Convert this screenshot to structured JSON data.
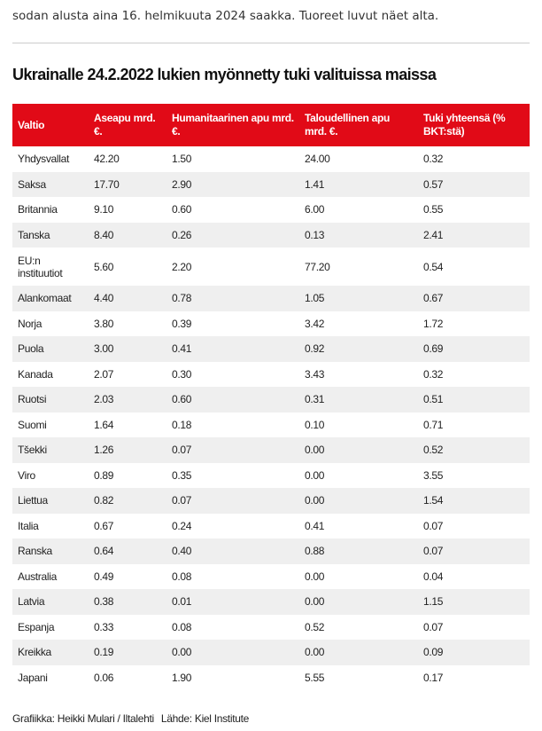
{
  "intro": "sodan alusta aina 16. helmikuuta 2024 saakka. Tuoreet luvut näet alta.",
  "title": "Ukrainalle 24.2.2022 lukien myönnetty tuki valituissa maissa",
  "table": {
    "header": [
      "Valtio",
      "Aseapu mrd. €.",
      "Humanitaarinen apu mrd. €.",
      "Taloudellinen apu mrd. €.",
      "Tuki yhteensä (% BKT:stä)"
    ],
    "rows": [
      [
        "Yhdysvallat",
        "42.20",
        "1.50",
        "24.00",
        "0.32"
      ],
      [
        "Saksa",
        "17.70",
        "2.90",
        "1.41",
        "0.57"
      ],
      [
        "Britannia",
        "9.10",
        "0.60",
        "6.00",
        "0.55"
      ],
      [
        "Tanska",
        "8.40",
        "0.26",
        "0.13",
        "2.41"
      ],
      [
        "EU:n instituutiot",
        "5.60",
        "2.20",
        "77.20",
        "0.54"
      ],
      [
        "Alankomaat",
        "4.40",
        "0.78",
        "1.05",
        "0.67"
      ],
      [
        "Norja",
        "3.80",
        "0.39",
        "3.42",
        "1.72"
      ],
      [
        "Puola",
        "3.00",
        "0.41",
        "0.92",
        "0.69"
      ],
      [
        "Kanada",
        "2.07",
        "0.30",
        "3.43",
        "0.32"
      ],
      [
        "Ruotsi",
        "2.03",
        "0.60",
        "0.31",
        "0.51"
      ],
      [
        "Suomi",
        "1.64",
        "0.18",
        "0.10",
        "0.71"
      ],
      [
        "Tšekki",
        "1.26",
        "0.07",
        "0.00",
        "0.52"
      ],
      [
        "Viro",
        "0.89",
        "0.35",
        "0.00",
        "3.55"
      ],
      [
        "Liettua",
        "0.82",
        "0.07",
        "0.00",
        "1.54"
      ],
      [
        "Italia",
        "0.67",
        "0.24",
        "0.41",
        "0.07"
      ],
      [
        "Ranska",
        "0.64",
        "0.40",
        "0.88",
        "0.07"
      ],
      [
        "Australia",
        "0.49",
        "0.08",
        "0.00",
        "0.04"
      ],
      [
        "Latvia",
        "0.38",
        "0.01",
        "0.00",
        "1.15"
      ],
      [
        "Espanja",
        "0.33",
        "0.08",
        "0.52",
        "0.07"
      ],
      [
        "Kreikka",
        "0.19",
        "0.00",
        "0.00",
        "0.09"
      ],
      [
        "Japani",
        "0.06",
        "1.90",
        "5.55",
        "0.17"
      ]
    ]
  },
  "footer": {
    "credit": "Grafiikka: Heikki Mulari / Iltalehti",
    "source": "Lähde: Kiel Institute"
  }
}
